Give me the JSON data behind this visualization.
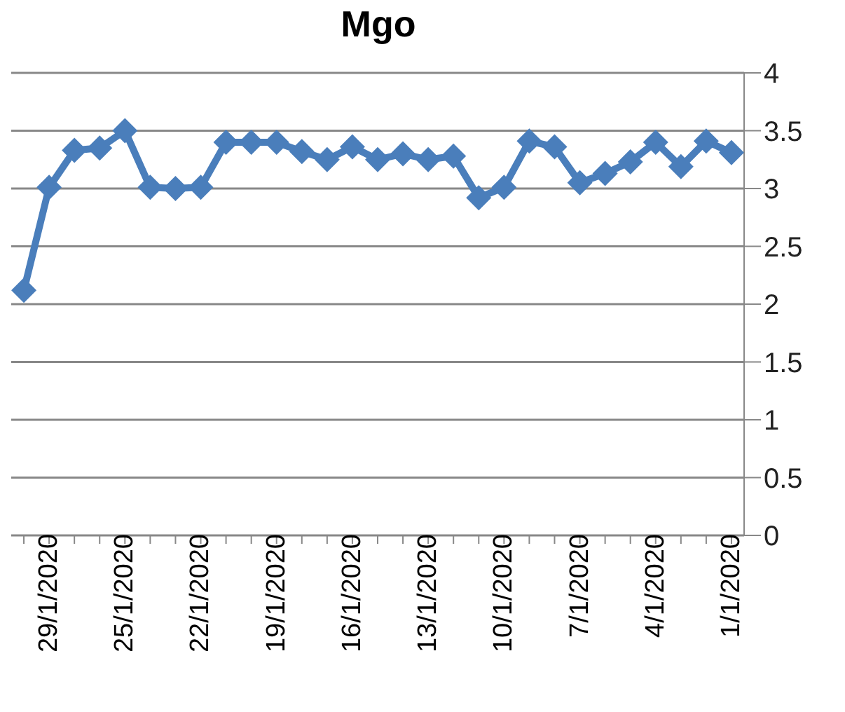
{
  "chart_data": {
    "type": "line",
    "title": "Mgo",
    "categories": [
      null,
      "29/1/2020",
      null,
      null,
      "25/1/2020",
      null,
      null,
      "22/1/2020",
      null,
      null,
      "19/1/2020",
      null,
      null,
      "16/1/2020",
      null,
      null,
      "13/1/2020",
      null,
      null,
      "10/1/2020",
      null,
      null,
      "7/1/2020",
      null,
      null,
      "4/1/2020",
      null,
      null,
      "1/1/2020"
    ],
    "series": [
      {
        "color": "#4a7ebb",
        "values": [
          2.12,
          3.01,
          3.33,
          3.35,
          3.5,
          3.01,
          3.0,
          3.01,
          3.4,
          3.4,
          3.4,
          3.32,
          3.25,
          3.36,
          3.25,
          3.3,
          3.25,
          3.28,
          2.92,
          3.01,
          3.41,
          3.36,
          3.05,
          3.13,
          3.23,
          3.4,
          3.19,
          3.41,
          3.31
        ]
      }
    ],
    "ylim": [
      0,
      4
    ],
    "yticks": [
      0,
      0.5,
      1,
      1.5,
      2,
      2.5,
      3,
      3.5,
      4
    ],
    "grid": "y",
    "marker": "diamond",
    "line_style": "solid"
  }
}
